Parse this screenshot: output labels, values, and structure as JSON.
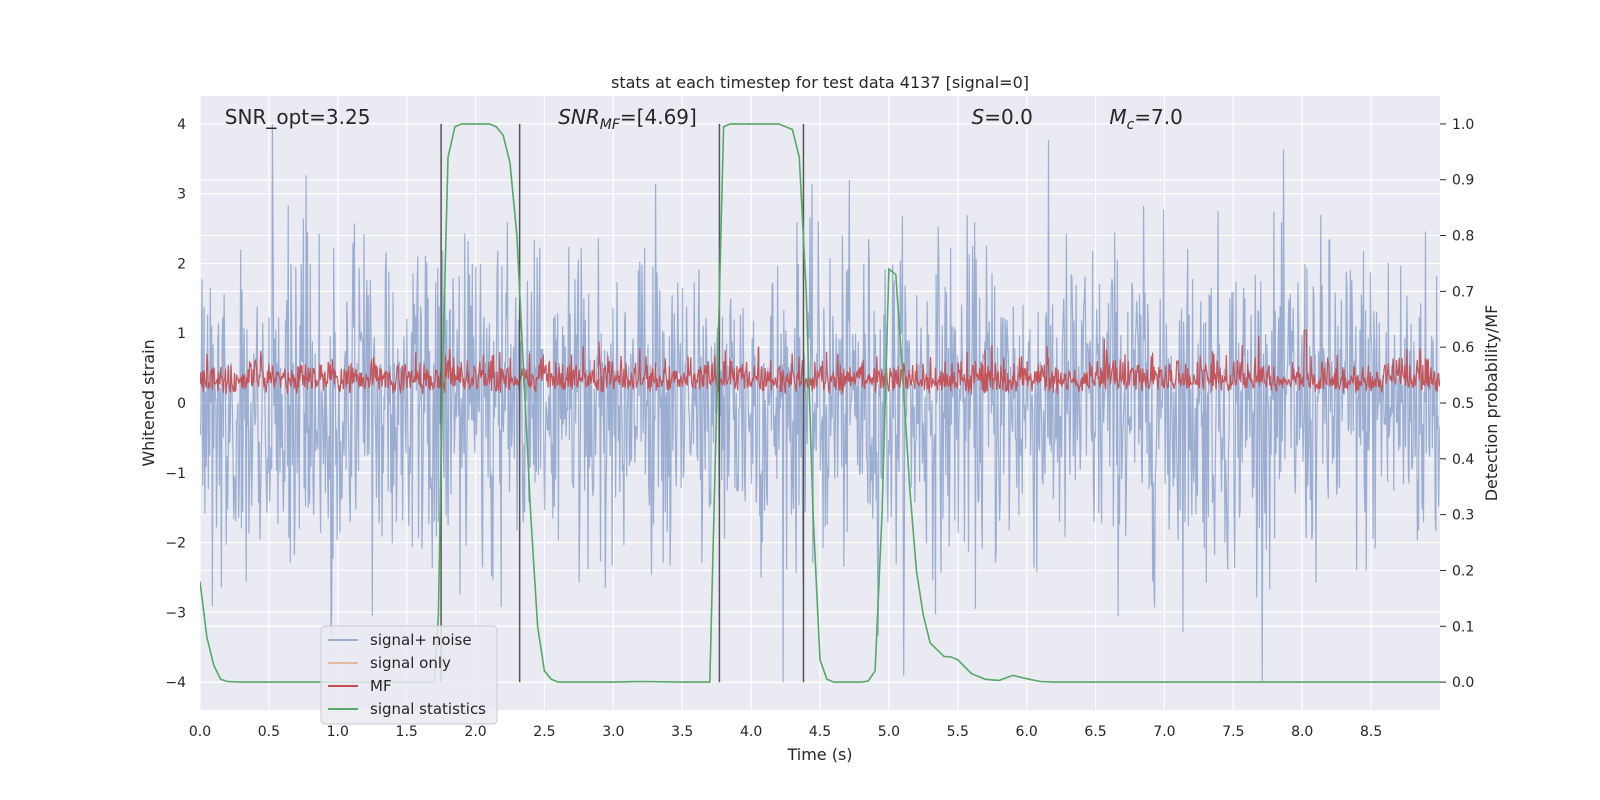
{
  "chart_data": {
    "type": "line",
    "title": "stats at each timestep for test data 4137 [signal=0]",
    "xlabel": "Time (s)",
    "ylabel_left": "Whitened strain",
    "ylabel_right": "Detection probability/MF",
    "xlim": [
      0.0,
      9.0
    ],
    "ylim_left": [
      -4.4,
      4.4
    ],
    "ylim_right": [
      -0.05,
      1.05
    ],
    "x_ticks": [
      "0.0",
      "0.5",
      "1.0",
      "1.5",
      "2.0",
      "2.5",
      "3.0",
      "3.5",
      "4.0",
      "4.5",
      "5.0",
      "5.5",
      "6.0",
      "6.5",
      "7.0",
      "7.5",
      "8.0",
      "8.5"
    ],
    "y_ticks_left": [
      "−4",
      "−3",
      "−2",
      "−1",
      "0",
      "1",
      "2",
      "3",
      "4"
    ],
    "y_ticks_right": [
      "0.0",
      "0.1",
      "0.2",
      "0.3",
      "0.4",
      "0.5",
      "0.6",
      "0.7",
      "0.8",
      "0.9",
      "1.0"
    ],
    "annotations": [
      {
        "text": "SNR_opt=3.25",
        "x": 0.18,
        "y": 4.1
      },
      {
        "text": "SNR",
        "sub": "MF",
        "suffix": "=[4.69]",
        "x": 2.6,
        "y": 4.1
      },
      {
        "text": "S",
        "suffix": "=0.0",
        "x": 5.6,
        "y": 4.1
      },
      {
        "text": "M",
        "sub": "c",
        "suffix": "=7.0",
        "x": 6.6,
        "y": 4.1
      }
    ],
    "legend": {
      "placement": "lower-left",
      "entries": [
        {
          "label": "signal+ noise",
          "color": "#4c72b0",
          "alpha": 0.5
        },
        {
          "label": "signal only",
          "color": "#dd8452",
          "alpha": 0.5
        },
        {
          "label": "MF",
          "color": "#c44e52"
        },
        {
          "label": "signal statistics",
          "color": "#55a868"
        }
      ]
    },
    "vertical_lines_x": [
      1.75,
      2.32,
      3.77,
      4.38
    ],
    "series": [
      {
        "name": "signal statistics",
        "axis": "right",
        "color": "#55a868",
        "x": [
          0.0,
          0.05,
          0.1,
          0.15,
          0.2,
          0.3,
          0.5,
          1.0,
          1.5,
          1.6,
          1.7,
          1.73,
          1.76,
          1.8,
          1.85,
          1.9,
          1.95,
          2.0,
          2.05,
          2.1,
          2.15,
          2.2,
          2.25,
          2.3,
          2.35,
          2.4,
          2.45,
          2.5,
          2.55,
          2.6,
          2.7,
          3.0,
          3.2,
          3.5,
          3.7,
          3.75,
          3.8,
          3.85,
          3.9,
          4.0,
          4.1,
          4.2,
          4.3,
          4.35,
          4.4,
          4.45,
          4.5,
          4.55,
          4.6,
          4.8,
          4.85,
          4.9,
          4.95,
          5.0,
          5.05,
          5.1,
          5.15,
          5.2,
          5.25,
          5.3,
          5.4,
          5.45,
          5.5,
          5.6,
          5.7,
          5.8,
          5.9,
          6.0,
          6.1,
          6.2,
          7.0,
          8.0,
          9.0
        ],
        "values": [
          0.18,
          0.08,
          0.03,
          0.005,
          0.001,
          0.0,
          0.0,
          0.0,
          0.0,
          0.0,
          0.0,
          0.12,
          0.55,
          0.94,
          0.995,
          1.0,
          1.0,
          1.0,
          1.0,
          1.0,
          0.995,
          0.98,
          0.93,
          0.8,
          0.55,
          0.3,
          0.1,
          0.02,
          0.005,
          0.0,
          0.0,
          0.0,
          0.001,
          0.0,
          0.0,
          0.5,
          0.995,
          1.0,
          1.0,
          1.0,
          1.0,
          1.0,
          0.99,
          0.94,
          0.7,
          0.3,
          0.04,
          0.005,
          0.0,
          0.0,
          0.002,
          0.02,
          0.3,
          0.74,
          0.73,
          0.55,
          0.35,
          0.2,
          0.12,
          0.07,
          0.046,
          0.045,
          0.04,
          0.015,
          0.005,
          0.003,
          0.012,
          0.006,
          0.001,
          0.0,
          0.0,
          0.0,
          0.0
        ]
      },
      {
        "name": "signal+ noise",
        "axis": "left",
        "color": "#4c72b0",
        "description": "dense strain noise, envelope approx ±1.6 typical, peaks to about ±4",
        "typical_abs": 1.6,
        "peak_abs": 4.0,
        "samples": 1800
      },
      {
        "name": "MF",
        "axis": "right",
        "color": "#c44e52",
        "description": "matched filter output fluctuating around 0.53",
        "baseline": 0.5,
        "typical_peak": 0.58,
        "max": 0.63,
        "max_x": 8.02,
        "samples": 1800
      },
      {
        "name": "signal only",
        "axis": "left",
        "color": "#dd8452",
        "values": []
      }
    ]
  }
}
